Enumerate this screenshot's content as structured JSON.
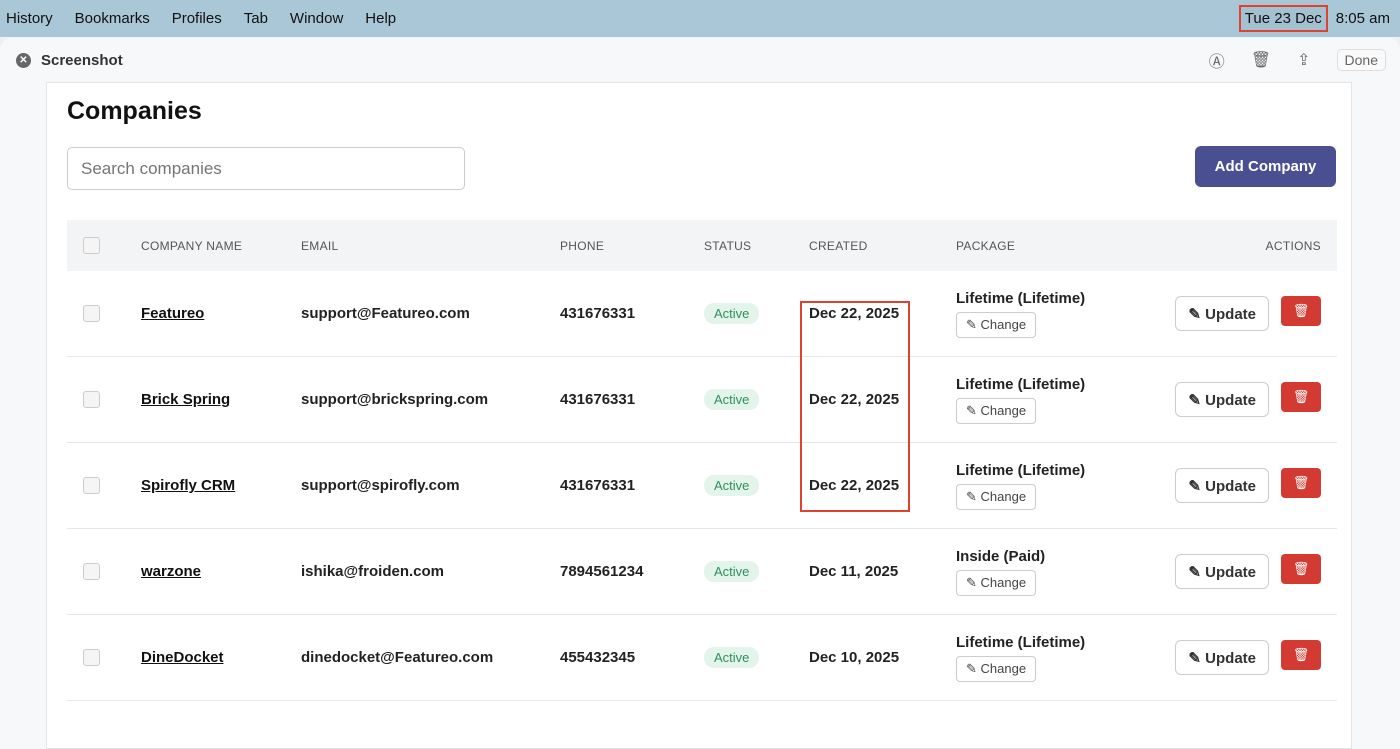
{
  "menubar": {
    "items": [
      "History",
      "Bookmarks",
      "Profiles",
      "Tab",
      "Window",
      "Help"
    ],
    "date": "Tue 23 Dec",
    "time": "8:05 am"
  },
  "window": {
    "title": "Screenshot",
    "done": "Done"
  },
  "page": {
    "title": "Companies",
    "search_placeholder": "Search companies",
    "add_button": "Add Company"
  },
  "table": {
    "headers": [
      "COMPANY NAME",
      "EMAIL",
      "PHONE",
      "STATUS",
      "CREATED",
      "PACKAGE",
      "ACTIONS"
    ],
    "rows": [
      {
        "name": "Featureo",
        "email": "support@Featureo.com",
        "phone": "431676331",
        "status": "Active",
        "created": "Dec 22, 2025",
        "package": "Lifetime (Lifetime)"
      },
      {
        "name": "Brick Spring",
        "email": "support@brickspring.com",
        "phone": "431676331",
        "status": "Active",
        "created": "Dec 22, 2025",
        "package": "Lifetime (Lifetime)"
      },
      {
        "name": "Spirofly CRM",
        "email": "support@spirofly.com",
        "phone": "431676331",
        "status": "Active",
        "created": "Dec 22, 2025",
        "package": "Lifetime (Lifetime)"
      },
      {
        "name": "warzone",
        "email": "ishika@froiden.com",
        "phone": "7894561234",
        "status": "Active",
        "created": "Dec 11, 2025",
        "package": "Inside (Paid)"
      },
      {
        "name": "DineDocket",
        "email": "dinedocket@Featureo.com",
        "phone": "455432345",
        "status": "Active",
        "created": "Dec 10, 2025",
        "package": "Lifetime (Lifetime)"
      }
    ],
    "change_label": "Change",
    "update_label": "Update"
  },
  "colors": {
    "accent": "#4a4f91",
    "danger": "#d33a32",
    "highlight": "#e0432d"
  }
}
